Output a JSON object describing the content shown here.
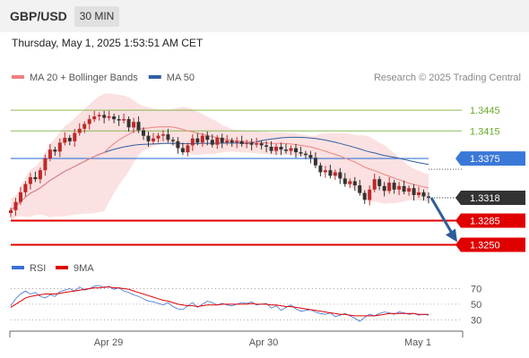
{
  "header": {
    "symbol": "GBP/USD",
    "timeframe": "30 MIN",
    "timestamp": "Thursday, May 1, 2025 1:53:51 AM CET"
  },
  "chart_data": {
    "type": "candlestick",
    "price_legend": [
      {
        "label": "MA 20 + Bollinger Bands",
        "color": "#f08080"
      },
      {
        "label": "MA 50",
        "color": "#3060a0"
      }
    ],
    "copyright": "Research © 2025 Trading Central",
    "x_tick_labels": [
      "Apr 29",
      "Apr 30",
      "May 1"
    ],
    "price_axis": {
      "min": 1.3235,
      "max": 1.3475
    },
    "levels": [
      {
        "value": 1.3445,
        "label": "1.3445",
        "kind": "target",
        "color": "#6aaa2a"
      },
      {
        "value": 1.3415,
        "label": "1.3415",
        "kind": "target",
        "color": "#6aaa2a"
      },
      {
        "value": 1.3375,
        "label": "1.3375",
        "kind": "pivot",
        "color": "#3a78d8"
      },
      {
        "value": 1.3318,
        "label": "1.3318",
        "kind": "last_price",
        "color": "#333333"
      },
      {
        "value": 1.3285,
        "label": "1.3285",
        "kind": "support",
        "color": "#e00000"
      },
      {
        "value": 1.325,
        "label": "1.3250",
        "kind": "support",
        "color": "#e00000"
      }
    ],
    "close_series": [
      1.33,
      1.3312,
      1.3326,
      1.3338,
      1.3348,
      1.3345,
      1.3358,
      1.3375,
      1.3388,
      1.3385,
      1.3398,
      1.3405,
      1.34,
      1.3412,
      1.3418,
      1.3425,
      1.3432,
      1.3436,
      1.3438,
      1.3434,
      1.3436,
      1.3432,
      1.343,
      1.3432,
      1.342,
      1.3428,
      1.3416,
      1.3408,
      1.34,
      1.3404,
      1.3408,
      1.341,
      1.3402,
      1.34,
      1.339,
      1.3384,
      1.3394,
      1.3404,
      1.3398,
      1.3408,
      1.3402,
      1.3395,
      1.3405,
      1.3398,
      1.3401,
      1.3398,
      1.34,
      1.3396,
      1.3398,
      1.3395,
      1.3397,
      1.3394,
      1.3392,
      1.3386,
      1.3392,
      1.3388,
      1.3386,
      1.339,
      1.3384,
      1.3382,
      1.338,
      1.3376,
      1.3365,
      1.3355,
      1.3358,
      1.335,
      1.3355,
      1.3346,
      1.3338,
      1.3342,
      1.3336,
      1.3325,
      1.3315,
      1.333,
      1.3345,
      1.3335,
      1.3328,
      1.334,
      1.333,
      1.3335,
      1.3327,
      1.3332,
      1.3322,
      1.3326,
      1.332,
      1.3318
    ],
    "rsi": {
      "labels": {
        "rsi": "RSI",
        "ma": "9MA"
      },
      "colors": {
        "rsi": "#3a6fd8",
        "ma": "#e00000"
      },
      "ticks": [
        {
          "value": 70,
          "label": "70"
        },
        {
          "value": 50,
          "label": "50"
        },
        {
          "value": 30,
          "label": "30"
        }
      ],
      "range": [
        20,
        82
      ],
      "values": [
        48,
        57,
        63,
        67,
        63,
        65,
        60,
        58,
        62,
        60,
        66,
        68,
        70,
        67,
        72,
        68,
        70,
        73,
        74,
        71,
        73,
        69,
        71,
        67,
        65,
        62,
        60,
        57,
        54,
        53,
        51,
        49,
        52,
        47,
        44,
        43,
        48,
        52,
        46,
        50,
        54,
        52,
        49,
        51,
        49,
        48,
        50,
        52,
        51,
        53,
        49,
        50,
        51,
        45,
        48,
        42,
        46,
        49,
        44,
        41,
        42,
        43,
        40,
        38,
        37,
        39,
        34,
        36,
        38,
        35,
        32,
        28,
        33,
        37,
        35,
        38,
        40,
        39,
        37,
        40,
        39,
        37,
        38,
        36,
        37,
        36
      ],
      "ma_values": [
        46,
        50,
        54,
        58,
        60,
        61,
        62,
        63,
        63,
        63,
        64,
        65,
        66,
        67,
        68,
        69,
        70,
        71,
        71,
        72,
        72,
        71,
        71,
        70,
        69,
        67,
        65,
        63,
        61,
        59,
        57,
        55,
        54,
        52,
        50,
        49,
        48,
        48,
        47,
        48,
        49,
        49,
        49,
        50,
        50,
        50,
        50,
        50,
        50,
        51,
        50,
        50,
        50,
        49,
        49,
        48,
        47,
        47,
        46,
        45,
        44,
        43,
        42,
        41,
        40,
        39,
        38,
        37,
        37,
        36,
        35,
        35,
        35,
        35,
        35,
        36,
        37,
        38,
        38,
        38,
        38,
        38,
        38,
        37,
        37,
        37
      ]
    }
  }
}
